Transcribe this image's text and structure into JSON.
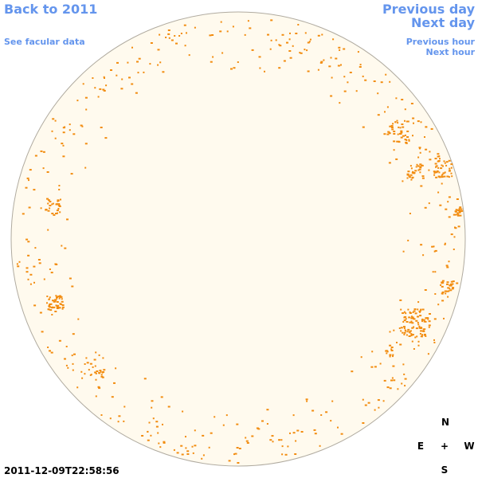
{
  "links": {
    "back_year": "Back to 2011",
    "facular": "See facular data",
    "previous_day": "Previous day",
    "next_day": "Next day",
    "previous_hour": "Previous hour",
    "next_hour": "Next hour"
  },
  "timestamp": "2011-12-09T22:58:56",
  "compass": {
    "north": "N",
    "east": "E",
    "center": "+",
    "west": "W",
    "south": "S"
  }
}
